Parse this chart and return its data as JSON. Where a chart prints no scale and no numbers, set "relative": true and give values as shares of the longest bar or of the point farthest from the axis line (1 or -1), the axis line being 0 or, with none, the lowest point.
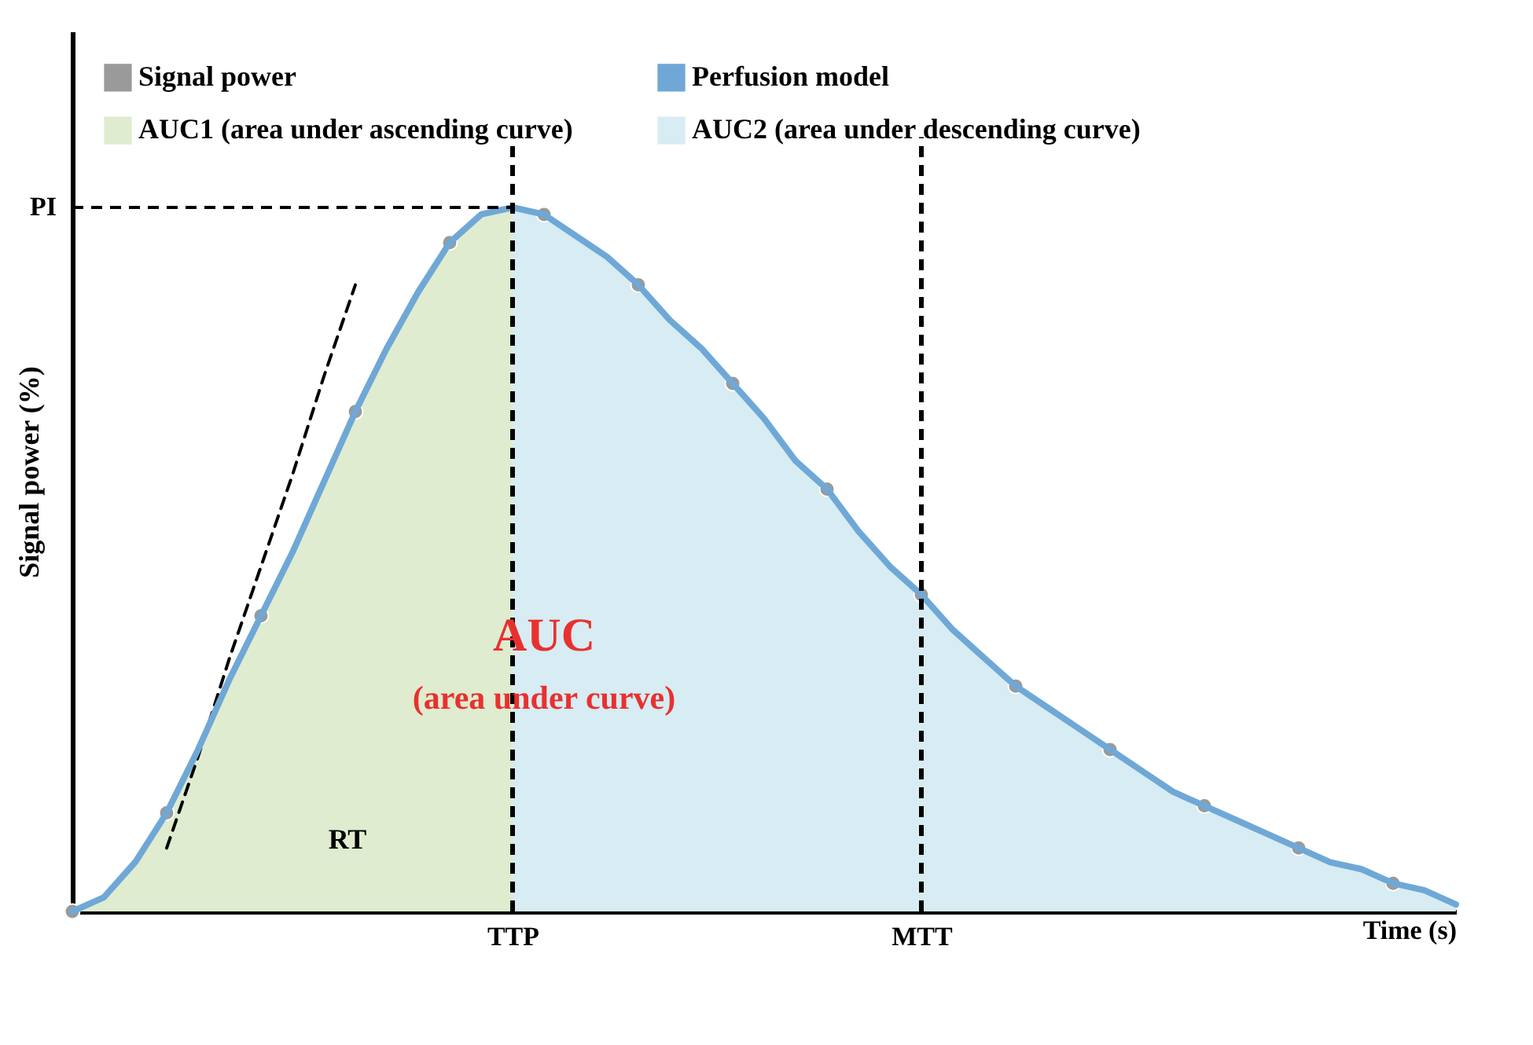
{
  "chart_data": {
    "type": "line",
    "relative": true,
    "xlabel": "Time (s)",
    "ylabel": "Signal power (%)",
    "legend": "top left",
    "categories": [
      null,
      null,
      null,
      null,
      null,
      null,
      null,
      null,
      null,
      null,
      null,
      null,
      null,
      null,
      "TTP",
      null,
      null,
      null,
      null,
      null,
      null,
      null,
      null,
      null,
      null,
      null,
      null,
      "MTT",
      null,
      null,
      null,
      null,
      null,
      null,
      null,
      null,
      null,
      null,
      null,
      null,
      null,
      null,
      null,
      null,
      null
    ],
    "series": [
      {
        "name": "AUC1 (area under ascending curve)",
        "type": "area",
        "color": "#dfeccf",
        "values": [
          0,
          0.02,
          0.07,
          0.14,
          0.23,
          0.33,
          0.42,
          0.51,
          0.61,
          0.71,
          0.8,
          0.88,
          0.95,
          0.99,
          1,
          null,
          null,
          null,
          null,
          null,
          null,
          null,
          null,
          null,
          null,
          null,
          null,
          null,
          null,
          null,
          null,
          null,
          null,
          null,
          null,
          null,
          null,
          null,
          null,
          null,
          null,
          null,
          null,
          null,
          null
        ]
      },
      {
        "name": "AUC2 (area under descending curve)",
        "type": "area",
        "color": "#d7ecf3",
        "values": [
          null,
          null,
          null,
          null,
          null,
          null,
          null,
          null,
          null,
          null,
          null,
          null,
          null,
          null,
          1,
          0.99,
          0.96,
          0.93,
          0.89,
          0.84,
          0.8,
          0.75,
          0.7,
          0.64,
          0.6,
          0.54,
          0.49,
          0.45,
          0.4,
          0.36,
          0.32,
          0.29,
          0.26,
          0.23,
          0.2,
          0.17,
          0.15,
          0.13,
          0.11,
          0.09,
          0.07,
          0.06,
          0.04,
          0.03,
          0.01
        ]
      },
      {
        "color": "#000000",
        "line_style": "dashed",
        "values": [
          null,
          null,
          null,
          0.09,
          0.22,
          0.36,
          0.49,
          0.62,
          0.76,
          0.89,
          null,
          null,
          null,
          null,
          null,
          null,
          null,
          null,
          null,
          null,
          null,
          null,
          null,
          null,
          null,
          null,
          null,
          null,
          null,
          null,
          null,
          null,
          null,
          null,
          null,
          null,
          null,
          null,
          null,
          null,
          null,
          null,
          null,
          null,
          null
        ]
      },
      {
        "name": "Signal power",
        "type": "scatter",
        "color": "#9a9a9a",
        "values": [
          0,
          null,
          null,
          0.14,
          null,
          null,
          0.42,
          null,
          null,
          0.71,
          null,
          null,
          0.95,
          null,
          null,
          0.99,
          null,
          null,
          0.89,
          null,
          null,
          0.75,
          null,
          null,
          0.6,
          null,
          null,
          0.45,
          null,
          null,
          0.32,
          null,
          null,
          0.23,
          null,
          null,
          0.15,
          null,
          null,
          0.09,
          null,
          null,
          0.04,
          null,
          null
        ]
      },
      {
        "name": "Perfusion model",
        "color": "#6fa8d6",
        "values": [
          0,
          0.02,
          0.07,
          0.14,
          0.23,
          0.33,
          0.42,
          0.51,
          0.61,
          0.71,
          0.8,
          0.88,
          0.95,
          0.99,
          1,
          0.99,
          0.96,
          0.93,
          0.89,
          0.84,
          0.8,
          0.75,
          0.7,
          0.64,
          0.6,
          0.54,
          0.49,
          0.45,
          0.4,
          0.36,
          0.32,
          0.29,
          0.26,
          0.23,
          0.2,
          0.17,
          0.15,
          0.13,
          0.11,
          0.09,
          0.07,
          0.06,
          0.04,
          0.03,
          0.01
        ]
      }
    ],
    "ref_lines": [
      {
        "axis": "y",
        "value": 1,
        "label": "PI",
        "line_style": "dashed"
      },
      {
        "axis": "x",
        "value": "TTP",
        "line_style": "dashed"
      },
      {
        "axis": "x",
        "value": "MTT",
        "line_style": "dashed"
      }
    ],
    "annotations": [
      "AUC",
      "(area under curve)",
      "RT"
    ]
  }
}
